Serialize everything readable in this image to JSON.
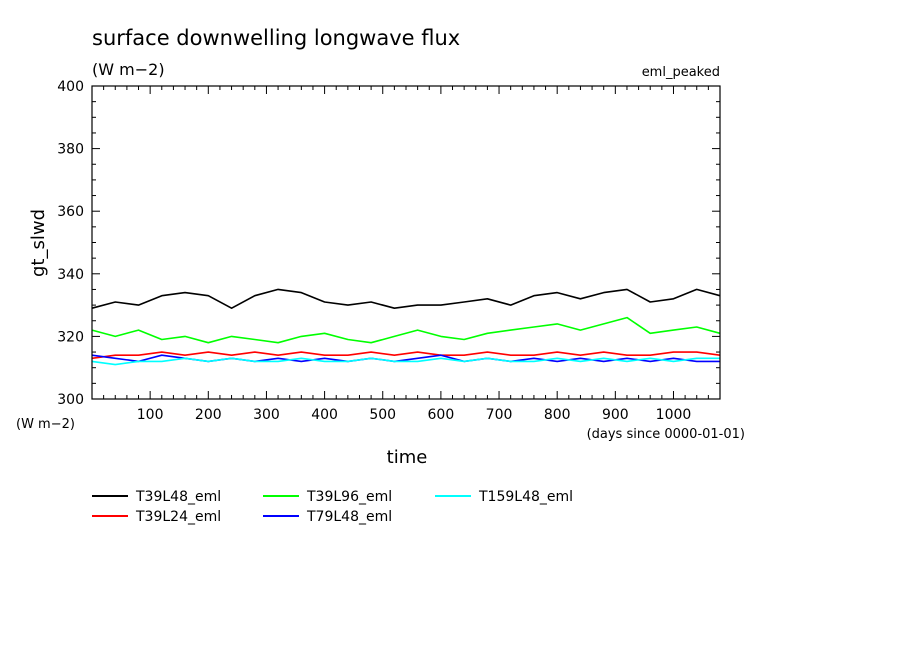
{
  "header": {
    "title": "surface downwelling longwave flux",
    "units": "(W m−2)",
    "experiment": "eml_peaked"
  },
  "chart_data": {
    "type": "line",
    "title": "surface downwelling longwave flux",
    "subtitle": "(W m−2)",
    "annotation": "eml_peaked",
    "xlabel": "time",
    "x_units": "(days since 0000-01-01)",
    "ylabel": "gt_slwd",
    "y_units": "(W m−2)",
    "xlim": [
      0,
      1080
    ],
    "ylim": [
      300,
      400
    ],
    "x_ticks": [
      "100",
      "200",
      "300",
      "400",
      "500",
      "600",
      "700",
      "800",
      "900",
      "1000"
    ],
    "y_ticks": [
      "300",
      "320",
      "340",
      "360",
      "380",
      "400"
    ],
    "grid": false,
    "legend_position": "bottom",
    "series": [
      {
        "name": "T39L48_eml",
        "color": "#000000",
        "x": [
          0,
          40,
          80,
          120,
          160,
          200,
          240,
          280,
          320,
          360,
          400,
          440,
          480,
          520,
          560,
          600,
          640,
          680,
          720,
          760,
          800,
          840,
          880,
          920,
          960,
          1000,
          1040,
          1080
        ],
        "y": [
          329,
          331,
          330,
          333,
          334,
          333,
          329,
          333,
          335,
          334,
          331,
          330,
          331,
          329,
          330,
          330,
          331,
          332,
          330,
          333,
          334,
          332,
          334,
          335,
          331,
          332,
          335,
          333
        ]
      },
      {
        "name": "T39L24_eml",
        "color": "#ff0000",
        "x": [
          0,
          40,
          80,
          120,
          160,
          200,
          240,
          280,
          320,
          360,
          400,
          440,
          480,
          520,
          560,
          600,
          640,
          680,
          720,
          760,
          800,
          840,
          880,
          920,
          960,
          1000,
          1040,
          1080
        ],
        "y": [
          313,
          314,
          314,
          315,
          314,
          315,
          314,
          315,
          314,
          315,
          314,
          314,
          315,
          314,
          315,
          314,
          314,
          315,
          314,
          314,
          315,
          314,
          315,
          314,
          314,
          315,
          315,
          314
        ]
      },
      {
        "name": "T39L96_eml",
        "color": "#00ff00",
        "x": [
          0,
          40,
          80,
          120,
          160,
          200,
          240,
          280,
          320,
          360,
          400,
          440,
          480,
          520,
          560,
          600,
          640,
          680,
          720,
          760,
          800,
          840,
          880,
          920,
          960,
          1000,
          1040,
          1080
        ],
        "y": [
          322,
          320,
          322,
          319,
          320,
          318,
          320,
          319,
          318,
          320,
          321,
          319,
          318,
          320,
          322,
          320,
          319,
          321,
          322,
          323,
          324,
          322,
          324,
          326,
          321,
          322,
          323,
          321
        ]
      },
      {
        "name": "T79L48_eml",
        "color": "#0000ff",
        "x": [
          0,
          40,
          80,
          120,
          160,
          200,
          240,
          280,
          320,
          360,
          400,
          440,
          480,
          520,
          560,
          600,
          640,
          680,
          720,
          760,
          800,
          840,
          880,
          920,
          960,
          1000,
          1040,
          1080
        ],
        "y": [
          314,
          313,
          312,
          314,
          313,
          312,
          313,
          312,
          313,
          312,
          313,
          312,
          313,
          312,
          313,
          314,
          312,
          313,
          312,
          313,
          312,
          313,
          312,
          313,
          312,
          313,
          312,
          312
        ]
      },
      {
        "name": "T159L48_eml",
        "color": "#00ffff",
        "x": [
          0,
          40,
          80,
          120,
          160,
          200,
          240,
          280,
          320,
          360,
          400,
          440,
          480,
          520,
          560,
          600,
          640,
          680,
          720,
          760,
          800,
          840,
          880,
          920,
          960,
          1000,
          1040,
          1080
        ],
        "y": [
          312,
          311,
          312,
          312,
          313,
          312,
          313,
          312,
          312,
          313,
          312,
          312,
          313,
          312,
          312,
          313,
          312,
          313,
          312,
          312,
          313,
          312,
          313,
          312,
          313,
          312,
          313,
          313
        ]
      }
    ]
  }
}
